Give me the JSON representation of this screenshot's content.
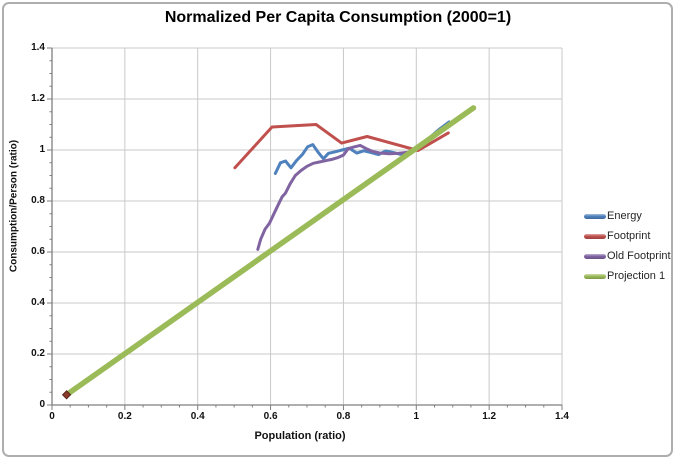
{
  "window": {
    "background": "#ffffff",
    "frame_border_color": "#aeaeae"
  },
  "chart_data": {
    "type": "line",
    "title": "Normalized Per Capita Consumption (2000=1)",
    "xlabel": "Population (ratio)",
    "ylabel": "Consumption/Person (ratio)",
    "xlim": [
      0,
      1.4
    ],
    "ylim": [
      0,
      1.4
    ],
    "xticks": [
      0,
      0.2,
      0.4,
      0.6,
      0.8,
      1.0,
      1.2,
      1.4
    ],
    "yticks": [
      0,
      0.2,
      0.4,
      0.6,
      0.8,
      1.0,
      1.2,
      1.4
    ],
    "xtick_labels": [
      "0",
      "0.2",
      "0.4",
      "0.6",
      "0.8",
      "1",
      "1.2",
      "1.4"
    ],
    "ytick_labels": [
      "0",
      "0.2",
      "0.4",
      "0.6",
      "0.8",
      "1",
      "1.2",
      "1.4"
    ],
    "minor_tick_step": 0.05,
    "grid": true,
    "grid_color": "#c9c9c9",
    "axis_color": "#7f7f7f",
    "legend_position": "right",
    "series": [
      {
        "name": "Energy",
        "color": "#4f81bd",
        "width": 3,
        "points": [
          [
            0.613,
            0.908
          ],
          [
            0.627,
            0.95
          ],
          [
            0.641,
            0.957
          ],
          [
            0.656,
            0.93
          ],
          [
            0.671,
            0.958
          ],
          [
            0.687,
            0.982
          ],
          [
            0.702,
            1.013
          ],
          [
            0.716,
            1.021
          ],
          [
            0.731,
            0.99
          ],
          [
            0.745,
            0.966
          ],
          [
            0.759,
            0.987
          ],
          [
            0.777,
            0.993
          ],
          [
            0.796,
            1.0
          ],
          [
            0.816,
            1.007
          ],
          [
            0.837,
            0.988
          ],
          [
            0.856,
            0.997
          ],
          [
            0.876,
            0.99
          ],
          [
            0.896,
            0.982
          ],
          [
            0.916,
            0.996
          ],
          [
            0.936,
            0.99
          ],
          [
            0.956,
            0.983
          ],
          [
            0.978,
            0.988
          ],
          [
            1.0,
            1.003
          ],
          [
            1.018,
            1.018
          ],
          [
            1.04,
            1.053
          ],
          [
            1.062,
            1.08
          ],
          [
            1.09,
            1.11
          ]
        ]
      },
      {
        "name": "Footprint",
        "color": "#c0504d",
        "width": 3,
        "points": [
          [
            0.502,
            0.93
          ],
          [
            0.604,
            1.09
          ],
          [
            0.725,
            1.1
          ],
          [
            0.795,
            1.027
          ],
          [
            0.865,
            1.053
          ],
          [
            1.005,
            0.998
          ],
          [
            1.088,
            1.067
          ]
        ]
      },
      {
        "name": "Old Footprint",
        "color": "#8064a2",
        "width": 3,
        "points": [
          [
            0.565,
            0.61
          ],
          [
            0.573,
            0.65
          ],
          [
            0.585,
            0.69
          ],
          [
            0.597,
            0.713
          ],
          [
            0.61,
            0.752
          ],
          [
            0.621,
            0.785
          ],
          [
            0.632,
            0.817
          ],
          [
            0.641,
            0.831
          ],
          [
            0.654,
            0.868
          ],
          [
            0.668,
            0.9
          ],
          [
            0.684,
            0.92
          ],
          [
            0.7,
            0.936
          ],
          [
            0.717,
            0.948
          ],
          [
            0.734,
            0.953
          ],
          [
            0.751,
            0.958
          ],
          [
            0.768,
            0.963
          ],
          [
            0.786,
            0.971
          ],
          [
            0.8,
            0.98
          ],
          [
            0.813,
            1.005
          ],
          [
            0.829,
            1.012
          ],
          [
            0.846,
            1.018
          ],
          [
            0.863,
            1.005
          ],
          [
            0.879,
            0.995
          ],
          [
            0.9,
            0.988
          ],
          [
            0.926,
            0.985
          ],
          [
            0.952,
            0.987
          ],
          [
            0.985,
            0.992
          ]
        ]
      },
      {
        "name": "Projection 1",
        "color": "#9bbb59",
        "width": 5.5,
        "points": [
          [
            0.04,
            0.04
          ],
          [
            1.157,
            1.165
          ]
        ]
      }
    ],
    "start_marker": {
      "shape": "diamond",
      "x": 0.04,
      "y": 0.04,
      "fill": "#8b3a2b",
      "stroke": "#55241a",
      "size": 8
    }
  }
}
